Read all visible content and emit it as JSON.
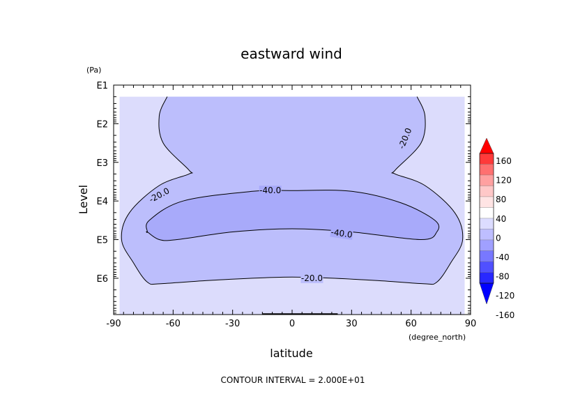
{
  "chart_data": {
    "type": "contour",
    "title": "eastward wind",
    "xlabel": "latitude",
    "x_unit": "(degree_north)",
    "ylabel": "Level",
    "y_unit": "(Pa)",
    "y_scale": "log",
    "xlim": [
      -90,
      90
    ],
    "ylim_exponent": [
      1,
      6.94
    ],
    "x_ticks": [
      "-90",
      "-60",
      "-30",
      "0",
      "30",
      "60",
      "90"
    ],
    "y_ticks": [
      "E1",
      "E2",
      "E3",
      "E4",
      "E5",
      "E6"
    ],
    "contour_labels": [
      "-20.0",
      "-40.0",
      "-20.0",
      "-40.0",
      "-20.0"
    ],
    "contour_lines": [
      {
        "level": -20,
        "points": [
          [
            -63,
            1.3
          ],
          [
            -67,
            1.8
          ],
          [
            -65,
            2.5
          ],
          [
            -52,
            3.2
          ],
          [
            -52,
            3.3
          ],
          [
            -67,
            3.6
          ],
          [
            -82,
            4.3
          ],
          [
            -86,
            5
          ],
          [
            -80,
            5.6
          ],
          [
            -73,
            6.1
          ],
          [
            -66,
            6.14
          ],
          [
            -40,
            6.05
          ],
          [
            0,
            5.97
          ],
          [
            40,
            6.05
          ],
          [
            66,
            6.14
          ],
          [
            73,
            6.1
          ],
          [
            80,
            5.6
          ],
          [
            86,
            5
          ],
          [
            82,
            4.3
          ],
          [
            67,
            3.6
          ],
          [
            52,
            3.3
          ],
          [
            52,
            3.2
          ],
          [
            65,
            2.5
          ],
          [
            67,
            1.8
          ],
          [
            63,
            1.3
          ]
        ]
      },
      {
        "level": -40,
        "points": [
          [
            -73,
            4.8
          ],
          [
            -72,
            4.5
          ],
          [
            -55,
            4.0
          ],
          [
            -20,
            3.75
          ],
          [
            0,
            3.73
          ],
          [
            30,
            3.75
          ],
          [
            55,
            4.05
          ],
          [
            72,
            4.5
          ],
          [
            73,
            4.8
          ],
          [
            65,
            5.0
          ],
          [
            30,
            4.8
          ],
          [
            0,
            4.72
          ],
          [
            -30,
            4.8
          ],
          [
            -58,
            5.0
          ],
          [
            -67,
            5.0
          ],
          [
            -73,
            4.8
          ]
        ]
      }
    ],
    "colorbar": {
      "labels": [
        "160",
        "120",
        "80",
        "40",
        "0",
        "-40",
        "-80",
        "-120",
        "-160"
      ],
      "colors": [
        "#ff0000",
        "#ff3a3a",
        "#ff7070",
        "#ffa0a0",
        "#ffc8c8",
        "#ffe4e4",
        "#ffffff",
        "#dcdcff",
        "#bebeff",
        "#a0a0ff",
        "#7878ff",
        "#5050ff",
        "#2828ff",
        "#0000ff"
      ]
    },
    "fills": {
      "light": "#dcdcfc",
      "medium": "#bcbefc",
      "dark": "#a8aafa"
    },
    "footer": "CONTOUR INTERVAL = 2.000E+01"
  }
}
